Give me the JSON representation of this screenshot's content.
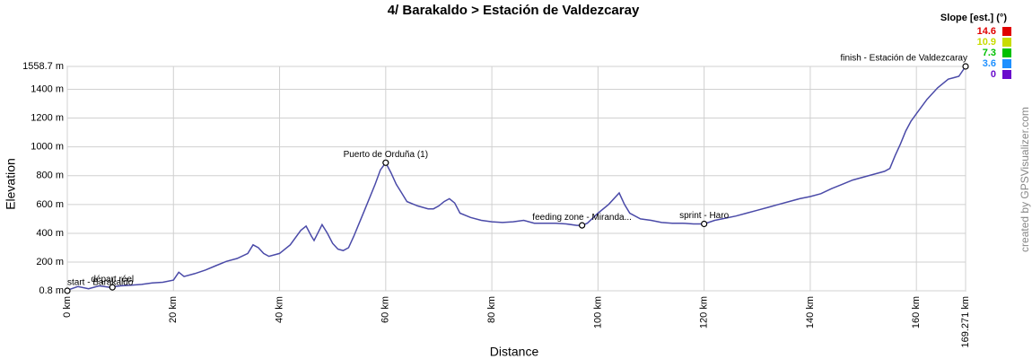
{
  "chart_data": {
    "type": "line",
    "title": "4/ Barakaldo > Estación de Valdezcaray",
    "xlabel": "Distance",
    "ylabel": "Elevation",
    "credit": "created by GPSVisualizer.com",
    "grid": true,
    "xlim": [
      0,
      169.271
    ],
    "ylim": [
      0.8,
      1558.7
    ],
    "xticks": [
      {
        "value": 0,
        "label": "0 km"
      },
      {
        "value": 20,
        "label": "20 km"
      },
      {
        "value": 40,
        "label": "40 km"
      },
      {
        "value": 60,
        "label": "60 km"
      },
      {
        "value": 80,
        "label": "80 km"
      },
      {
        "value": 100,
        "label": "100 km"
      },
      {
        "value": 120,
        "label": "120 km"
      },
      {
        "value": 140,
        "label": "140 km"
      },
      {
        "value": 160,
        "label": "160 km"
      },
      {
        "value": 169.271,
        "label": "169.271 km"
      }
    ],
    "yticks": [
      {
        "value": 0.8,
        "label": "0.8 m"
      },
      {
        "value": 200,
        "label": "200 m"
      },
      {
        "value": 400,
        "label": "400 m"
      },
      {
        "value": 600,
        "label": "600 m"
      },
      {
        "value": 800,
        "label": "800 m"
      },
      {
        "value": 1000,
        "label": "1000 m"
      },
      {
        "value": 1200,
        "label": "1200 m"
      },
      {
        "value": 1400,
        "label": "1400 m"
      },
      {
        "value": 1558.7,
        "label": "1558.7 m"
      }
    ],
    "series": [
      {
        "name": "Elevation",
        "color": "#4a4aa8",
        "x": [
          0,
          2,
          4,
          6,
          8,
          10,
          12,
          14,
          16,
          18,
          20,
          21,
          22,
          24,
          26,
          28,
          30,
          32,
          34,
          35,
          36,
          37,
          38,
          40,
          42,
          44,
          45,
          46,
          46.5,
          48,
          49,
          50,
          51,
          52,
          53,
          54,
          56,
          58,
          59,
          60,
          61,
          62,
          63,
          64,
          66,
          68,
          69,
          70,
          71,
          72,
          73,
          74,
          76,
          78,
          80,
          82,
          84,
          86,
          88,
          90,
          92,
          94,
          96,
          97,
          98,
          100,
          102,
          104,
          105,
          106,
          108,
          110,
          112,
          114,
          116,
          118,
          120,
          122,
          124,
          126,
          128,
          130,
          132,
          134,
          136,
          138,
          140,
          142,
          144,
          146,
          148,
          150,
          152,
          154,
          155,
          156,
          157,
          158,
          159,
          160,
          162,
          164,
          166,
          167,
          168,
          169.271
        ],
        "values": [
          5,
          30,
          15,
          35,
          25,
          35,
          40,
          45,
          55,
          60,
          75,
          130,
          100,
          120,
          145,
          175,
          205,
          225,
          260,
          320,
          300,
          260,
          240,
          260,
          320,
          420,
          450,
          380,
          350,
          460,
          400,
          330,
          290,
          280,
          300,
          380,
          560,
          740,
          840,
          890,
          820,
          740,
          680,
          620,
          590,
          570,
          570,
          590,
          620,
          640,
          610,
          540,
          510,
          490,
          480,
          475,
          480,
          490,
          470,
          470,
          470,
          465,
          455,
          455,
          470,
          540,
          600,
          680,
          600,
          540,
          500,
          490,
          475,
          470,
          470,
          465,
          465,
          490,
          505,
          520,
          540,
          560,
          580,
          600,
          620,
          640,
          655,
          675,
          710,
          740,
          770,
          790,
          810,
          830,
          850,
          940,
          1020,
          1110,
          1180,
          1230,
          1330,
          1410,
          1470,
          1480,
          1490,
          1558.7
        ]
      }
    ],
    "waypoints": [
      {
        "label": "start - Barakaldo",
        "distance": 0,
        "elevation": 0.8
      },
      {
        "label": "départ réel",
        "distance": 8.5,
        "elevation": 25
      },
      {
        "label": "Puerto de Orduña (1)",
        "distance": 60,
        "elevation": 890
      },
      {
        "label": "feeding zone - Miranda...",
        "distance": 97,
        "elevation": 455
      },
      {
        "label": "sprint - Haro",
        "distance": 120,
        "elevation": 465
      },
      {
        "label": "finish - Estación de Valdezcaray",
        "distance": 169.271,
        "elevation": 1558.7
      }
    ],
    "legend": {
      "title": "Slope [est.] (°)",
      "entries": [
        {
          "value": 14.6,
          "color": "#e00000"
        },
        {
          "value": 10.9,
          "color": "#c8dc00"
        },
        {
          "value": 7.3,
          "color": "#00c000"
        },
        {
          "value": 3.6,
          "color": "#1e90ff"
        },
        {
          "value": 0.0,
          "color": "#6a0dcc"
        }
      ]
    }
  }
}
